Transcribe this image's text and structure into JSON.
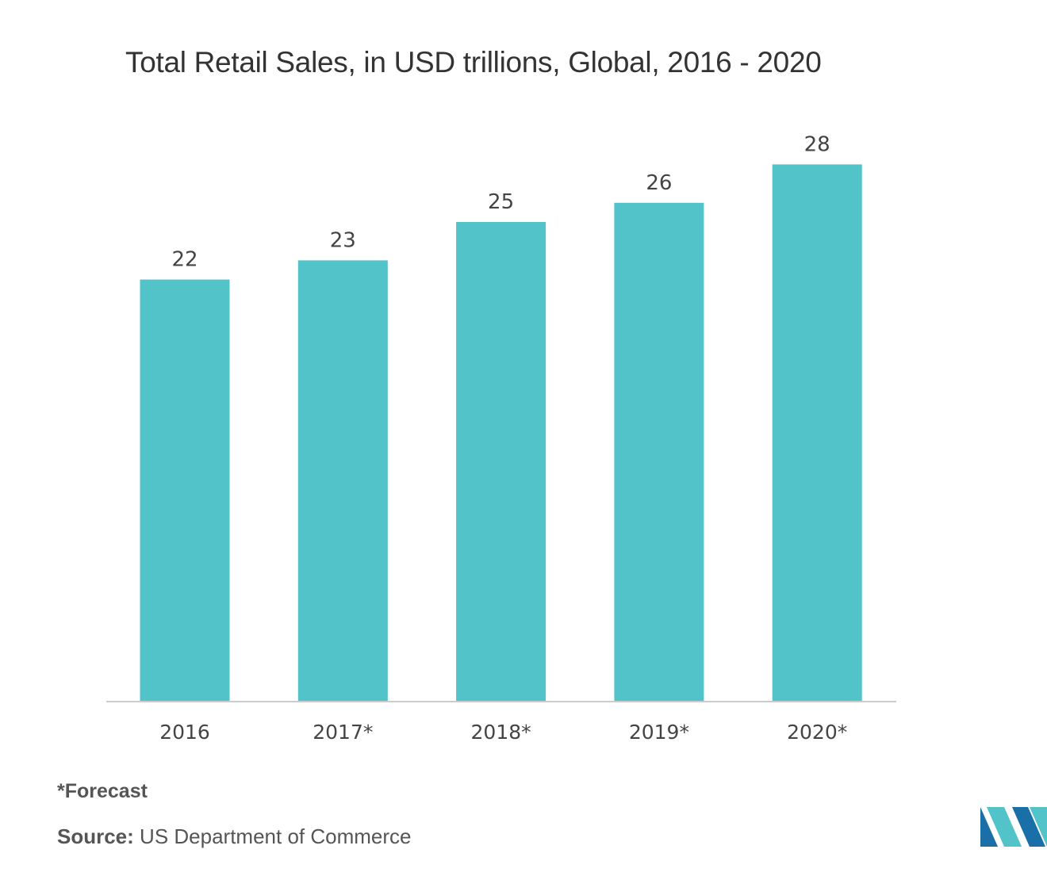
{
  "chart_data": {
    "type": "bar",
    "title": "Total Retail Sales, in USD trillions, Global, 2016 - 2020",
    "categories": [
      "2016",
      "2017*",
      "2018*",
      "2019*",
      "2020*"
    ],
    "values": [
      22,
      23,
      25,
      26,
      28
    ],
    "xlabel": "",
    "ylabel": "",
    "ylim": [
      0,
      30
    ],
    "grid": false,
    "legend": "none",
    "bar_color": "#52c3c9"
  },
  "footnote": "*Forecast",
  "source": {
    "label": "Source:",
    "text": "US Department of Commerce"
  },
  "logo": {
    "icon": "mordor-intelligence-logo",
    "colors": [
      "#1b6fa8",
      "#52c3c9"
    ]
  }
}
